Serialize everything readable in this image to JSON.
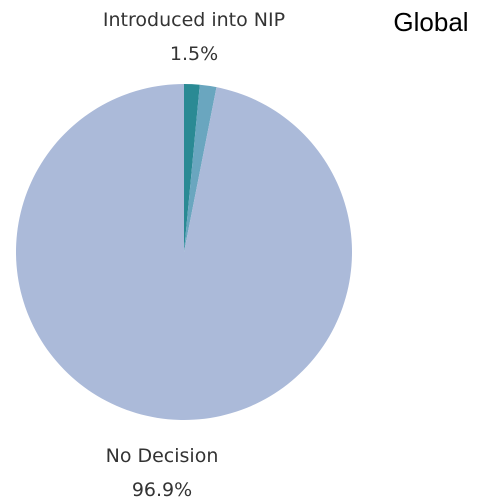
{
  "chart_data": {
    "type": "pie",
    "title": "Global",
    "slices": [
      {
        "label": "Introduced into NIP",
        "value": 1.5,
        "value_label": "1.5%",
        "color": "#2a8a94",
        "show_label": true
      },
      {
        "label": "",
        "value": 1.6,
        "value_label": "",
        "color": "#6aa6bf",
        "show_label": false
      },
      {
        "label": "No Decision",
        "value": 96.9,
        "value_label": "96.9%",
        "color": "#abbad9",
        "show_label": true
      }
    ],
    "start": "top",
    "direction": "clockwise"
  }
}
